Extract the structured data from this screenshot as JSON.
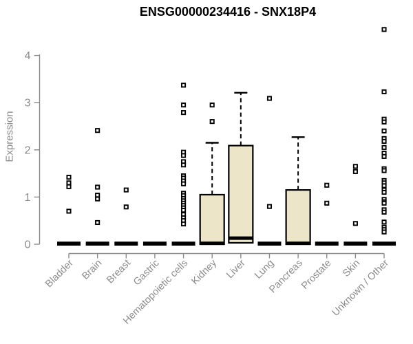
{
  "chart_data": {
    "type": "boxplot",
    "title": "ENSG00000234416 - SNX18P4",
    "ylabel": "Expression",
    "xlabel": "",
    "ylim": [
      0,
      4.6
    ],
    "yticks": [
      0,
      1,
      2,
      3,
      4
    ],
    "grid": false,
    "legend": "none",
    "categories": [
      "Bladder",
      "Brain",
      "Breast",
      "Gastric",
      "Hematopoietic cells",
      "Kidney",
      "Liver",
      "Lung",
      "Pancreas",
      "Prostate",
      "Skin",
      "Unknown / Other"
    ],
    "series": [
      {
        "name": "Bladder",
        "q1": 0,
        "median": 0,
        "q3": 0,
        "whisker_low": 0,
        "whisker_high": 0,
        "outliers": [
          1.42,
          1.3,
          1.22,
          0.7
        ]
      },
      {
        "name": "Brain",
        "q1": 0,
        "median": 0,
        "q3": 0,
        "whisker_low": 0,
        "whisker_high": 0,
        "outliers": [
          2.41,
          1.21,
          1.04,
          0.96,
          0.46
        ]
      },
      {
        "name": "Breast",
        "q1": 0,
        "median": 0,
        "q3": 0,
        "whisker_low": 0,
        "whisker_high": 0,
        "outliers": [
          1.15,
          0.79
        ]
      },
      {
        "name": "Gastric",
        "q1": 0,
        "median": 0,
        "q3": 0,
        "whisker_low": 0,
        "whisker_high": 0,
        "outliers": []
      },
      {
        "name": "Hematopoietic cells",
        "q1": 0,
        "median": 0,
        "q3": 0,
        "whisker_low": 0,
        "whisker_high": 0,
        "outliers": [
          3.37,
          2.95,
          2.79,
          1.95,
          1.88,
          1.75,
          1.68,
          1.45,
          1.4,
          1.34,
          1.28,
          1.08,
          1.03,
          0.97,
          0.92,
          0.87,
          0.82,
          0.77,
          0.72,
          0.63,
          0.56,
          0.5,
          0.43
        ]
      },
      {
        "name": "Kidney",
        "q1": 0,
        "median": 0.02,
        "q3": 1.05,
        "whisker_low": 0,
        "whisker_high": 2.15,
        "outliers": [
          2.95,
          2.6
        ]
      },
      {
        "name": "Liver",
        "q1": 0.03,
        "median": 0.13,
        "q3": 2.09,
        "whisker_low": 0,
        "whisker_high": 3.21,
        "outliers": []
      },
      {
        "name": "Lung",
        "q1": 0,
        "median": 0,
        "q3": 0,
        "whisker_low": 0,
        "whisker_high": 0,
        "outliers": [
          3.09,
          0.8
        ]
      },
      {
        "name": "Pancreas",
        "q1": 0,
        "median": 0.02,
        "q3": 1.15,
        "whisker_low": 0,
        "whisker_high": 2.27,
        "outliers": []
      },
      {
        "name": "Prostate",
        "q1": 0,
        "median": 0,
        "q3": 0,
        "whisker_low": 0,
        "whisker_high": 0,
        "outliers": [
          1.25,
          0.87
        ]
      },
      {
        "name": "Skin",
        "q1": 0,
        "median": 0,
        "q3": 0,
        "whisker_low": 0,
        "whisker_high": 0,
        "outliers": [
          1.65,
          1.54,
          0.44
        ]
      },
      {
        "name": "Unknown / Other",
        "q1": 0,
        "median": 0,
        "q3": 0,
        "whisker_low": 0,
        "whisker_high": 0,
        "outliers": [
          4.55,
          3.23,
          2.65,
          2.59,
          2.4,
          2.24,
          2.18,
          2.05,
          1.93,
          1.86,
          1.6,
          1.56,
          1.35,
          1.3,
          1.24,
          1.15,
          1.1,
          0.95,
          0.9,
          0.87,
          0.73,
          0.68,
          0.47,
          0.36,
          0.31,
          0.26
        ]
      }
    ],
    "colors": {
      "box_fill": "#ece5c7",
      "box_stroke": "#000000",
      "flat_bar": "#000000",
      "axis": "#8a8a8a",
      "tick_label": "#8c8c8c",
      "title": "#000000",
      "background": "#ffffff"
    }
  }
}
